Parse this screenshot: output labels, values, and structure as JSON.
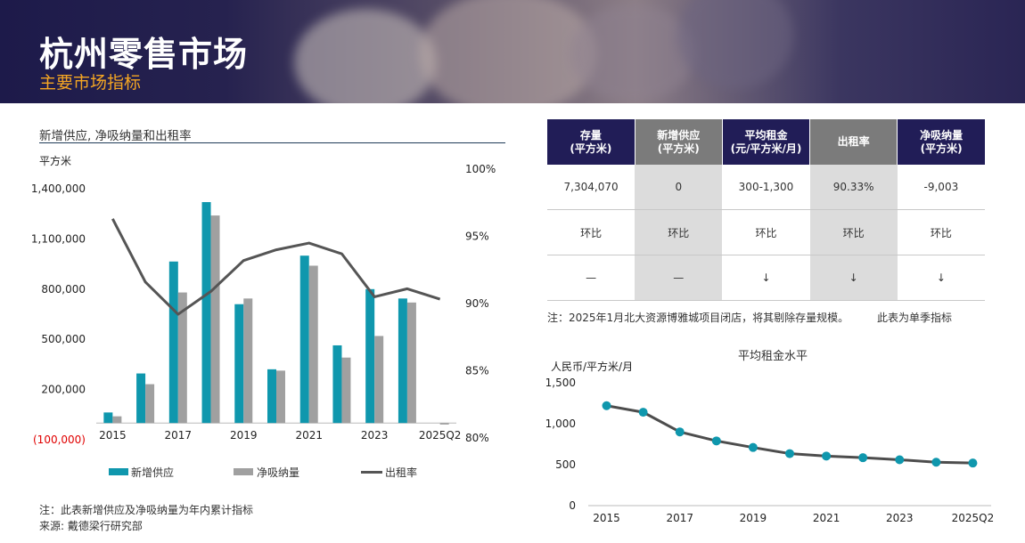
{
  "header": {
    "title": "杭州零售市场",
    "subtitle": "主要市场指标"
  },
  "left_chart": {
    "heading": "新增供应, 净吸纳量和出租率",
    "y_unit": "平方米",
    "legend": [
      {
        "label": "新增供应",
        "color": "#0f97ad"
      },
      {
        "label": "净吸纳量",
        "color": "#a0a0a0"
      },
      {
        "label": "出租率",
        "color": "#555555"
      }
    ]
  },
  "chart_data": [
    {
      "type": "bar",
      "categories": [
        "2015",
        "2016",
        "2017",
        "2018",
        "2019",
        "2020",
        "2021",
        "2022",
        "2023",
        "2024",
        "2025Q2"
      ],
      "x_tick_labels": [
        "2015",
        "",
        "2017",
        "",
        "2019",
        "",
        "2021",
        "",
        "2023",
        "",
        "2025Q2"
      ],
      "series": [
        {
          "name": "新增供应",
          "axis": "left",
          "type": "bar",
          "color": "#0f97ad",
          "values": [
            63000,
            296000,
            965000,
            1320000,
            710000,
            321000,
            1000000,
            464000,
            800000,
            744000,
            0
          ]
        },
        {
          "name": "净吸纳量",
          "axis": "left",
          "type": "bar",
          "color": "#a0a0a0",
          "values": [
            40000,
            232000,
            780000,
            1240000,
            744000,
            313000,
            940000,
            391000,
            520000,
            720000,
            -9003
          ]
        },
        {
          "name": "出租率",
          "axis": "right",
          "type": "line",
          "color": "#555555",
          "values": [
            96.3,
            91.6,
            89.2,
            90.9,
            93.2,
            94.0,
            94.5,
            93.7,
            90.5,
            91.1,
            90.33
          ]
        }
      ],
      "y_left": {
        "min": -100000,
        "max": 1400000,
        "ticks": [
          1400000,
          1100000,
          800000,
          500000,
          200000,
          -100000
        ],
        "tick_labels": [
          "1,400,000",
          "1,100,000",
          "800,000",
          "500,000",
          "200,000",
          "(100,000)"
        ]
      },
      "y_right": {
        "min": 80,
        "max": 100,
        "ticks": [
          100,
          95,
          90,
          85,
          80
        ],
        "tick_labels": [
          "100%",
          "95%",
          "90%",
          "85%",
          "80%"
        ]
      }
    },
    {
      "type": "line",
      "title": "平均租金水平",
      "ylabel": "人民币/平方米/月",
      "categories": [
        "2015",
        "2016",
        "2017",
        "2018",
        "2019",
        "2020",
        "2021",
        "2022",
        "2023",
        "2024",
        "2025Q2"
      ],
      "x_tick_labels": [
        "2015",
        "",
        "2017",
        "",
        "2019",
        "",
        "2021",
        "",
        "2023",
        "",
        "2025Q2"
      ],
      "series": [
        {
          "name": "平均租金",
          "color": "#0f97ad",
          "values": [
            1220,
            1140,
            900,
            790,
            710,
            635,
            605,
            585,
            560,
            530,
            520
          ]
        }
      ],
      "ylim": [
        0,
        1500
      ],
      "y_ticks": [
        1500,
        1000,
        500,
        0
      ],
      "y_tick_labels": [
        "1,500",
        "1,000",
        "500",
        "0"
      ]
    }
  ],
  "kpi_table": {
    "headers": [
      {
        "line1": "存量",
        "line2": "(平方米)"
      },
      {
        "line1": "新增供应",
        "line2": "(平方米)"
      },
      {
        "line1": "平均租金",
        "line2": "(元/平方米/月)"
      },
      {
        "line1": "出租率",
        "line2": ""
      },
      {
        "line1": "净吸纳量",
        "line2": "(平方米)"
      }
    ],
    "values": [
      "7,304,070",
      "0",
      "300-1,300",
      "90.33%",
      "-9,003"
    ],
    "qoq_label": [
      "环比",
      "环比",
      "环比",
      "环比",
      "环比"
    ],
    "trend": [
      "—",
      "—",
      "↓",
      "↓",
      "↓"
    ],
    "note": "注：2025年1月北大资源博雅城项目闭店，将其剔除存量规模。",
    "note2": "此表为单季指标"
  },
  "footnotes": {
    "note": "注：此表新增供应及净吸纳量为年内累计指标",
    "source": "来源: 戴德梁行研究部"
  }
}
